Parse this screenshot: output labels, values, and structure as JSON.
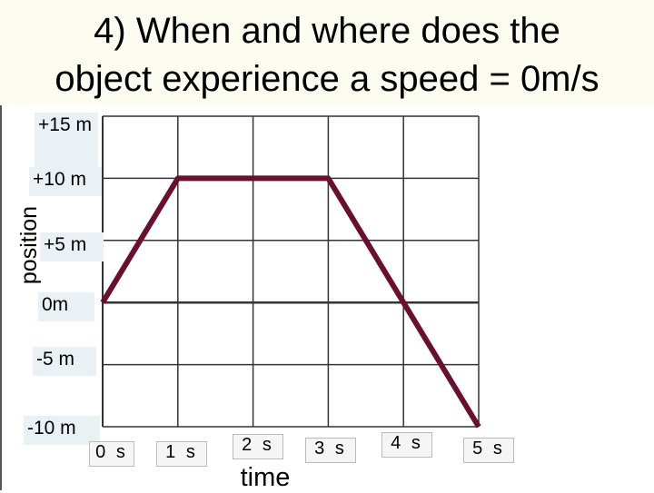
{
  "slide": {
    "title_line1": "4) When and where does the",
    "title_line2": "object experience a speed = 0m/s"
  },
  "chart_data": {
    "type": "line",
    "title": "4) When and where does the object experience a speed = 0m/s",
    "xlabel": "time",
    "ylabel": "position",
    "x_tick_labels": [
      "0 s",
      "1 s",
      "2 s",
      "3 s",
      "4 s",
      "5 s"
    ],
    "y_tick_labels": [
      "+15 m",
      "+10 m",
      "+5 m",
      "0m",
      "-5 m",
      "-10 m"
    ],
    "xlim": [
      0,
      5
    ],
    "ylim": [
      -10,
      15
    ],
    "grid": true,
    "line_color": "#6b0f2e",
    "series": [
      {
        "x": [
          0,
          1,
          3,
          5
        ],
        "y": [
          0,
          10,
          10,
          -10
        ]
      }
    ]
  }
}
